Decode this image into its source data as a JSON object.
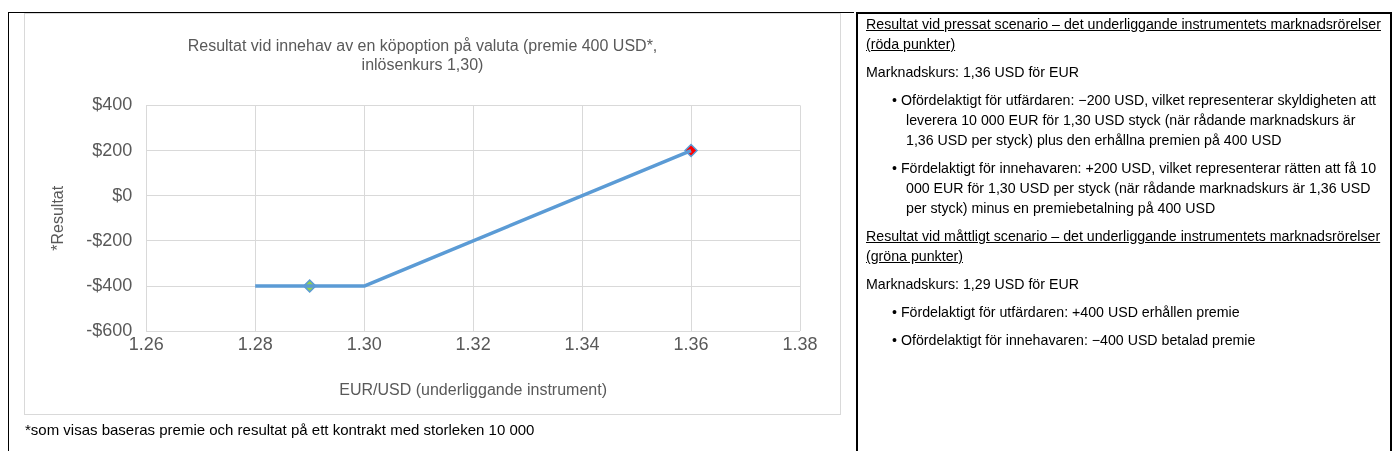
{
  "chart_data": [
    {
      "type": "line",
      "title": "Resultat vid innehav av en köpoption på valuta (premie 400 USD*, inlösenkurs 1,30)",
      "xlabel": "EUR/USD (underliggande instrument)",
      "ylabel": "*Resultat",
      "series": [
        {
          "type": "line",
          "color": "#5b9bd5",
          "x": [
            1.28,
            1.3,
            1.36
          ],
          "values": [
            -400,
            -400,
            200
          ],
          "marker": "none"
        },
        {
          "type": "scatter",
          "color": "#5b9bd5",
          "colors": [
            "#92d050",
            "#ff0000"
          ],
          "x": [
            1.29,
            1.36
          ],
          "values": [
            -400,
            200
          ],
          "marker": "diamond"
        }
      ],
      "xlim": [
        1.26,
        1.38
      ],
      "xticks": [
        1.26,
        1.28,
        {
          "value": 1.3,
          "label": "1.30"
        },
        1.32,
        1.34,
        1.36,
        1.38
      ],
      "ylim": [
        -600,
        400
      ],
      "yticks": [
        {
          "value": -600,
          "label": "-$600"
        },
        {
          "value": -400,
          "label": "-$400"
        },
        {
          "value": -200,
          "label": "-$200"
        },
        {
          "value": 0,
          "label": "$0"
        },
        {
          "value": 200,
          "label": "$200"
        },
        {
          "value": 400,
          "label": "$400"
        }
      ],
      "grid": true,
      "legend": false,
      "annotations": [
        "*som visas baseras premie och resultat på ett kontrakt med storleken 10 000"
      ]
    },
    {
      "type": "other",
      "annotations": [
        "Resultat vid pressat scenario – det underliggande instrumentets marknadsrörelser (röda punkter)",
        "Marknadskurs: 1,36 USD för EUR",
        "• Ofördelaktigt för utfärdaren: −200 USD, vilket representerar skyldigheten att leverera 10 000 EUR för 1,30 USD styck (när rådande marknadskurs är 1,36 USD per styck) plus den erhållna premien på 400 USD",
        "• Fördelaktigt för innehavaren: +200 USD, vilket representerar rätten att få 10 000 EUR för 1,30 USD per styck (när rådande marknadskurs är 1,36 USD per styck) minus en premiebetalning på 400 USD",
        "Resultat vid måttligt scenario – det underliggande instrumentets marknadsrörelser (gröna punkter)",
        "Marknadskurs: 1,29 USD för EUR",
        "• Fördelaktigt för utfärdaren: +400 USD erhållen premie",
        "• Ofördelaktigt för innehavaren: −400 USD betalad premie"
      ]
    }
  ]
}
